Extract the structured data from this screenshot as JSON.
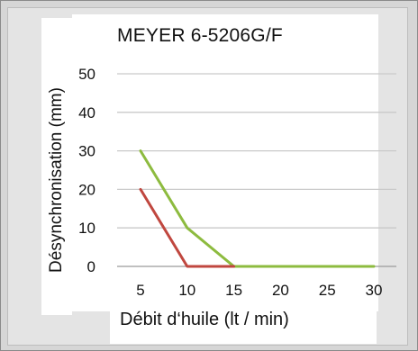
{
  "chart_data": {
    "type": "line",
    "title": "MEYER 6-5206G/F",
    "xlabel": "Débit d‘huile  (lt / min)",
    "ylabel": "Désynchronisation (mm)",
    "x_ticks": [
      "5",
      "10",
      "15",
      "20",
      "25",
      "30"
    ],
    "y_ticks": [
      "0",
      "10",
      "20",
      "30",
      "40",
      "50"
    ],
    "xlim": [
      5,
      30
    ],
    "ylim": [
      0,
      50
    ],
    "grid": "horizontal",
    "series": [
      {
        "color": "#8dbb3f",
        "x": [
          5,
          10,
          15,
          20,
          25,
          30
        ],
        "y": [
          30,
          10,
          0,
          0,
          0,
          0
        ]
      },
      {
        "color": "#c0473f",
        "x": [
          5,
          10,
          15
        ],
        "y": [
          20,
          0,
          0
        ]
      }
    ]
  }
}
